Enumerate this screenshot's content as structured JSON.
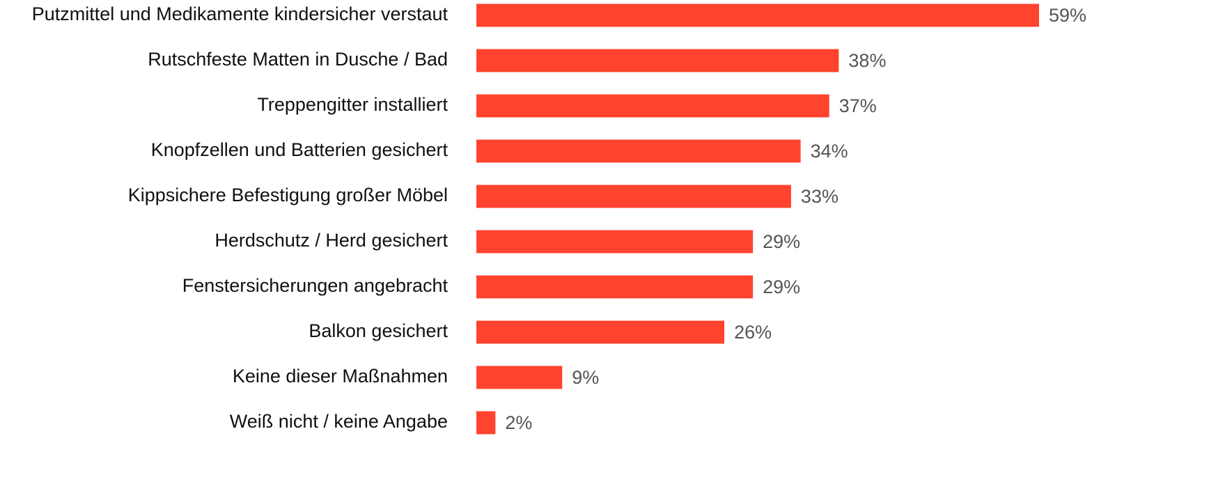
{
  "chart_data": {
    "type": "hbar",
    "categories": [
      "Putzmittel und Medikamente kindersicher verstaut",
      "Rutschfeste Matten in Dusche / Bad",
      "Treppengitter installiert",
      "Knopfzellen und Batterien gesichert",
      "Kippsichere Befestigung großer Möbel",
      "Herdschutz / Herd gesichert",
      "Fenstersicherungen angebracht",
      "Balkon gesichert",
      "Keine dieser Maßnahmen",
      "Weiß nicht / keine Angabe"
    ],
    "values": [
      59,
      38,
      37,
      34,
      33,
      29,
      29,
      26,
      9,
      2
    ],
    "value_labels": [
      "59%",
      "38%",
      "37%",
      "34%",
      "33%",
      "29%",
      "29%",
      "26%",
      "9%",
      "2%"
    ],
    "color": "#ff432e"
  }
}
